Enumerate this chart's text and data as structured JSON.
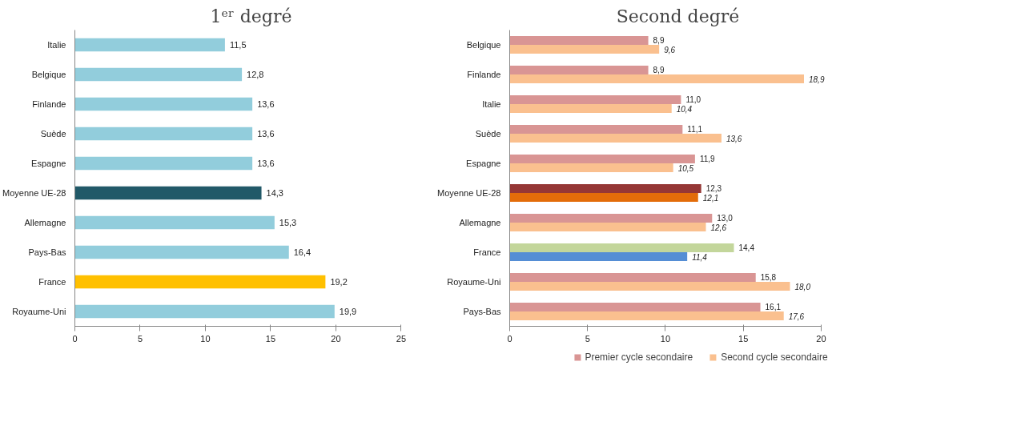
{
  "chart_data": [
    {
      "type": "bar",
      "orientation": "horizontal",
      "title": "1ᵉʳ degré",
      "categories": [
        "Italie",
        "Belgique",
        "Finlande",
        "Suède",
        "Espagne",
        "Moyenne UE-28",
        "Allemagne",
        "Pays-Bas",
        "France",
        "Royaume-Uni"
      ],
      "series": [
        {
          "colors": [
            "#92cddc",
            "#92cddc",
            "#92cddc",
            "#92cddc",
            "#92cddc",
            "#215968",
            "#92cddc",
            "#92cddc",
            "#ffc000",
            "#92cddc"
          ],
          "values": [
            11.5,
            12.8,
            13.6,
            13.6,
            13.6,
            14.3,
            15.3,
            16.4,
            19.2,
            19.9
          ],
          "value_labels": [
            "11,5",
            "12,8",
            "13,6",
            "13,6",
            "13,6",
            "14,3",
            "15,3",
            "16,4",
            "19,2",
            "19,9"
          ]
        }
      ],
      "xlim": [
        0,
        25
      ],
      "xticks": [
        0,
        5,
        10,
        15,
        20,
        25
      ],
      "grid": false
    },
    {
      "type": "bar",
      "orientation": "horizontal",
      "title": "Second degré",
      "categories": [
        "Belgique",
        "Finlande",
        "Italie",
        "Suède",
        "Espagne",
        "Moyenne UE-28",
        "Allemagne",
        "France",
        "Royaume-Uni",
        "Pays-Bas"
      ],
      "series": [
        {
          "name": "Premier cycle secondaire",
          "colors": [
            "#d99594",
            "#d99594",
            "#d99594",
            "#d99594",
            "#d99594",
            "#953735",
            "#d99594",
            "#c3d69b",
            "#d99594",
            "#d99594"
          ],
          "values": [
            8.9,
            8.9,
            11.0,
            11.1,
            11.9,
            12.3,
            13.0,
            14.4,
            15.8,
            16.1
          ],
          "value_labels": [
            "8,9",
            "8,9",
            "11,0",
            "11,1",
            "11,9",
            "12,3",
            "13,0",
            "14,4",
            "15,8",
            "16,1"
          ]
        },
        {
          "name": "Second cycle secondaire",
          "colors": [
            "#fac08f",
            "#fac08f",
            "#fac08f",
            "#fac08f",
            "#fac08f",
            "#e36c09",
            "#fac08f",
            "#558ed5",
            "#fac08f",
            "#fac08f"
          ],
          "values": [
            9.6,
            18.9,
            10.4,
            13.6,
            10.5,
            12.1,
            12.6,
            11.4,
            18.0,
            17.6
          ],
          "value_labels": [
            "9,6",
            "18,9",
            "10,4",
            "13,6",
            "10,5",
            "12,1",
            "12,6",
            "11,4",
            "18,0",
            "17,6"
          ]
        }
      ],
      "xlim": [
        0,
        20
      ],
      "xticks": [
        0,
        5,
        10,
        15,
        20
      ],
      "grid": false,
      "legend": "bottom"
    }
  ]
}
